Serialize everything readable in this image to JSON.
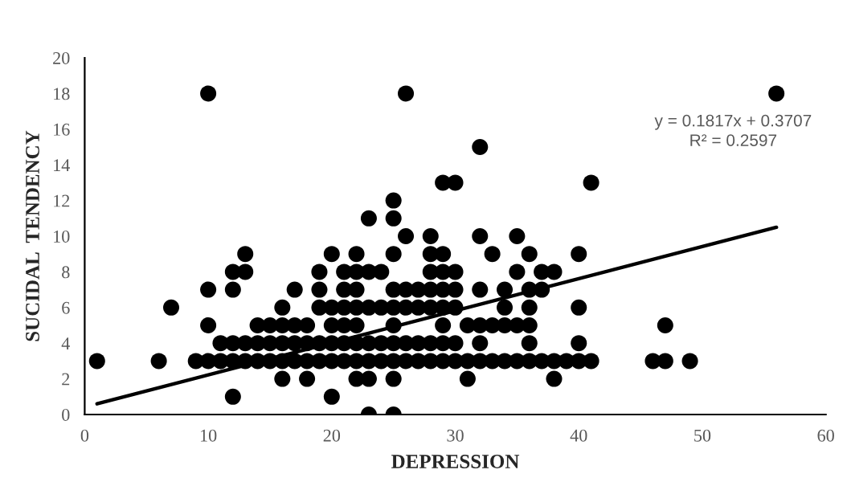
{
  "chart_data": {
    "type": "scatter",
    "xlabel": "DEPRESSION",
    "ylabel": "SUCIDAL  TENDENCY",
    "xlim": [
      0,
      60
    ],
    "xticks": [
      0,
      10,
      20,
      30,
      40,
      50,
      60
    ],
    "ylim": [
      0,
      20
    ],
    "yticks": [
      0,
      2,
      4,
      6,
      8,
      10,
      12,
      14,
      16,
      18,
      20
    ],
    "grid": false,
    "legend": false,
    "marker": "circle",
    "annotations": [
      "y = 0.1817x + 0.3707",
      "R² = 0.2597"
    ],
    "series": [
      {
        "color": "#000000",
        "x": [
          23,
          25,
          12,
          20,
          16,
          18,
          22,
          23,
          25,
          31,
          38,
          1,
          6,
          9,
          10,
          11,
          12,
          13,
          14,
          15,
          16,
          17,
          18,
          19,
          20,
          21,
          22,
          23,
          24,
          25,
          26,
          27,
          28,
          29,
          30,
          31,
          32,
          33,
          34,
          35,
          36,
          37,
          38,
          39,
          40,
          41,
          46,
          47,
          49,
          11,
          12,
          13,
          14,
          15,
          16,
          17,
          18,
          19,
          20,
          21,
          22,
          23,
          24,
          25,
          26,
          27,
          28,
          29,
          30,
          32,
          36,
          40,
          10,
          14,
          15,
          16,
          17,
          18,
          20,
          21,
          22,
          25,
          29,
          31,
          32,
          33,
          34,
          35,
          36,
          47,
          7,
          16,
          19,
          20,
          21,
          22,
          23,
          24,
          25,
          26,
          27,
          28,
          29,
          30,
          34,
          36,
          40,
          10,
          12,
          17,
          19,
          21,
          22,
          25,
          26,
          27,
          28,
          29,
          30,
          32,
          34,
          36,
          37,
          12,
          13,
          19,
          21,
          22,
          23,
          24,
          28,
          29,
          30,
          35,
          37,
          38,
          13,
          20,
          22,
          25,
          28,
          29,
          33,
          36,
          40,
          26,
          28,
          32,
          35,
          23,
          25,
          25,
          29,
          30,
          41,
          32,
          10,
          26,
          56
        ],
        "values": [
          0,
          0,
          1,
          1,
          2,
          2,
          2,
          2,
          2,
          2,
          2,
          3,
          3,
          3,
          3,
          3,
          3,
          3,
          3,
          3,
          3,
          3,
          3,
          3,
          3,
          3,
          3,
          3,
          3,
          3,
          3,
          3,
          3,
          3,
          3,
          3,
          3,
          3,
          3,
          3,
          3,
          3,
          3,
          3,
          3,
          3,
          3,
          3,
          3,
          4,
          4,
          4,
          4,
          4,
          4,
          4,
          4,
          4,
          4,
          4,
          4,
          4,
          4,
          4,
          4,
          4,
          4,
          4,
          4,
          4,
          4,
          4,
          5,
          5,
          5,
          5,
          5,
          5,
          5,
          5,
          5,
          5,
          5,
          5,
          5,
          5,
          5,
          5,
          5,
          5,
          6,
          6,
          6,
          6,
          6,
          6,
          6,
          6,
          6,
          6,
          6,
          6,
          6,
          6,
          6,
          6,
          6,
          7,
          7,
          7,
          7,
          7,
          7,
          7,
          7,
          7,
          7,
          7,
          7,
          7,
          7,
          7,
          7,
          8,
          8,
          8,
          8,
          8,
          8,
          8,
          8,
          8,
          8,
          8,
          8,
          8,
          9,
          9,
          9,
          9,
          9,
          9,
          9,
          9,
          9,
          10,
          10,
          10,
          10,
          11,
          11,
          12,
          13,
          13,
          13,
          15,
          18,
          18,
          18
        ]
      },
      {
        "type": "line",
        "color": "#000000",
        "x": [
          1,
          56
        ],
        "values": [
          0.6,
          10.5
        ],
        "line_style": "solid",
        "marker": "none"
      }
    ]
  }
}
